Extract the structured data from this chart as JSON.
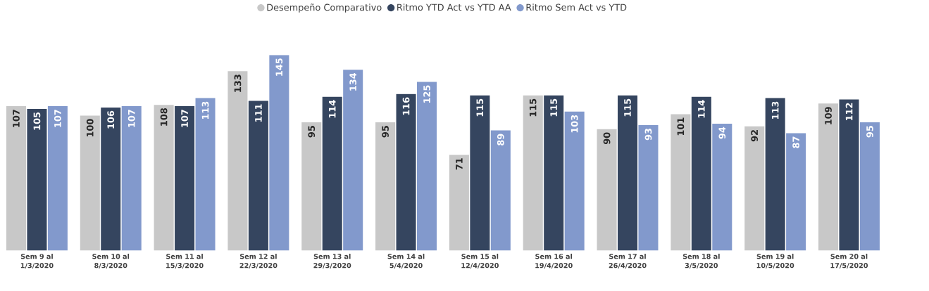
{
  "chart_data": {
    "type": "bar",
    "categories": [
      "Sem 9 al 1/3/2020",
      "Sem 10 al 8/3/2020",
      "Sem 11 al 15/3/2020",
      "Sem 12 al 22/3/2020",
      "Sem 13 al 29/3/2020",
      "Sem 14 al 5/4/2020",
      "Sem 15 al 12/4/2020",
      "Sem 16 al 19/4/2020",
      "Sem 17 al 26/4/2020",
      "Sem 18 al 3/5/2020",
      "Sem 19 al 10/5/2020",
      "Sem 20 al 17/5/2020"
    ],
    "series": [
      {
        "name": "Desempeño Comparativo",
        "color": "#c8c8c8",
        "values": [
          107,
          100,
          108,
          133,
          95,
          95,
          71,
          115,
          90,
          101,
          92,
          109
        ]
      },
      {
        "name": "Ritmo YTD Act vs YTD AA",
        "color": "#35455f",
        "values": [
          105,
          106,
          107,
          111,
          114,
          116,
          115,
          115,
          115,
          114,
          113,
          112
        ]
      },
      {
        "name": "Ritmo Sem Act vs YTD",
        "color": "#8299cc",
        "values": [
          107,
          107,
          113,
          145,
          134,
          125,
          89,
          103,
          93,
          94,
          87,
          95
        ]
      }
    ],
    "data_labels": true,
    "legend": "top"
  }
}
